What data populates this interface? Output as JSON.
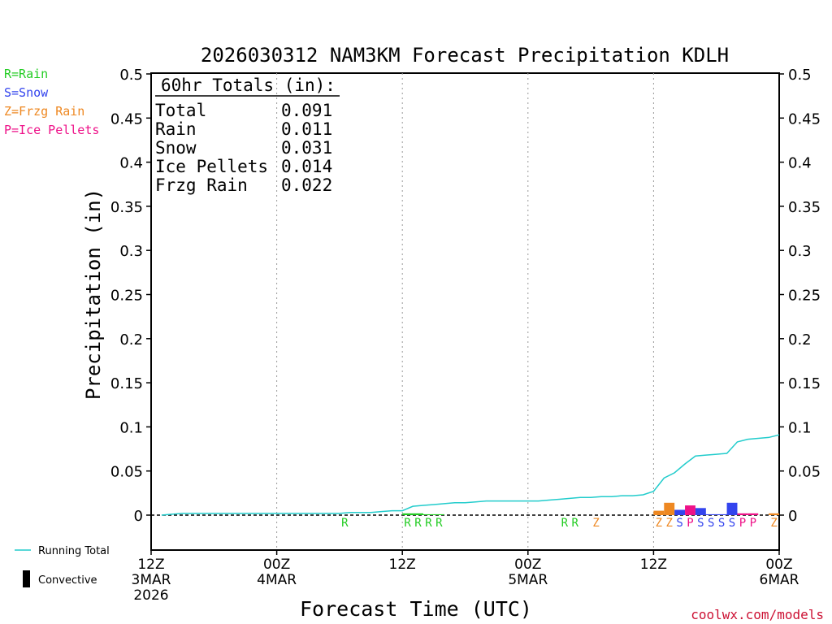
{
  "chart_data": {
    "type": "bar",
    "title": "2026030312 NAM3KM Forecast Precipitation KDLH",
    "xlabel": "Forecast Time (UTC)",
    "ylabel": "Precipitation (in)",
    "ylim": [
      -0.04,
      0.5
    ],
    "yticks": [
      "0.5",
      "0.45",
      "0.4",
      "0.35",
      "0.3",
      "0.25",
      "0.2",
      "0.15",
      "0.1",
      "0.05",
      "0"
    ],
    "ytick_values": [
      0.5,
      0.45,
      0.4,
      0.35,
      0.3,
      0.25,
      0.2,
      0.15,
      0.1,
      0.05,
      0
    ],
    "xlim_hours": [
      0,
      60
    ],
    "xticks": [
      {
        "hour": 0,
        "lines": [
          "12Z",
          "3MAR",
          "2026"
        ]
      },
      {
        "hour": 12,
        "lines": [
          "00Z",
          "4MAR"
        ]
      },
      {
        "hour": 24,
        "lines": [
          "12Z"
        ]
      },
      {
        "hour": 36,
        "lines": [
          "00Z",
          "5MAR"
        ]
      },
      {
        "hour": 48,
        "lines": [
          "12Z"
        ]
      },
      {
        "hour": 60,
        "lines": [
          "00Z",
          "6MAR"
        ]
      }
    ],
    "legend_types": [
      {
        "text": "R=Rain",
        "color": "#22cc22"
      },
      {
        "text": "S=Snow",
        "color": "#3344ee"
      },
      {
        "text": "Z=Frzg Rain",
        "color": "#ee8822"
      },
      {
        "text": "P=Ice Pellets",
        "color": "#ee1188"
      }
    ],
    "legend_lines": [
      {
        "text": "Running Total",
        "color": "#22cccc"
      },
      {
        "text": "Convective",
        "color": "#000000"
      }
    ],
    "totals": {
      "heading": "60hr Totals (in):",
      "rows": [
        {
          "label": "Total",
          "value": "0.091"
        },
        {
          "label": "Rain",
          "value": "0.011"
        },
        {
          "label": "Snow",
          "value": "0.031"
        },
        {
          "label": "Ice Pellets",
          "value": "0.014"
        },
        {
          "label": "Frzg Rain",
          "value": "0.022"
        }
      ]
    },
    "colors": {
      "R": "#22cc22",
      "S": "#3344ee",
      "Z": "#ee8822",
      "P": "#ee1188",
      "total": "#22cccc"
    },
    "bars": [
      {
        "hour": 25,
        "value": 0.002,
        "type": "R"
      },
      {
        "hour": 26,
        "value": 0.002,
        "type": "R"
      },
      {
        "hour": 27,
        "value": 0.001,
        "type": "R"
      },
      {
        "hour": 28,
        "value": 0.001,
        "type": "R"
      },
      {
        "hour": 49,
        "value": 0.005,
        "type": "Z"
      },
      {
        "hour": 50,
        "value": 0.014,
        "type": "Z"
      },
      {
        "hour": 51,
        "value": 0.006,
        "type": "S"
      },
      {
        "hour": 52,
        "value": 0.011,
        "type": "P"
      },
      {
        "hour": 53,
        "value": 0.008,
        "type": "S"
      },
      {
        "hour": 54,
        "value": 0.001,
        "type": "S"
      },
      {
        "hour": 55,
        "value": 0.001,
        "type": "S"
      },
      {
        "hour": 56,
        "value": 0.014,
        "type": "S"
      },
      {
        "hour": 57,
        "value": 0.002,
        "type": "P"
      },
      {
        "hour": 58,
        "value": 0.002,
        "type": "P"
      },
      {
        "hour": 60,
        "value": 0.002,
        "type": "Z"
      }
    ],
    "type_markers": [
      {
        "hour": 19,
        "type": "R"
      },
      {
        "hour": 25,
        "type": "R"
      },
      {
        "hour": 26,
        "type": "R"
      },
      {
        "hour": 27,
        "type": "R"
      },
      {
        "hour": 28,
        "type": "R"
      },
      {
        "hour": 40,
        "type": "R"
      },
      {
        "hour": 41,
        "type": "R"
      },
      {
        "hour": 43,
        "type": "Z"
      },
      {
        "hour": 49,
        "type": "Z"
      },
      {
        "hour": 50,
        "type": "Z"
      },
      {
        "hour": 51,
        "type": "S"
      },
      {
        "hour": 52,
        "type": "P"
      },
      {
        "hour": 53,
        "type": "S"
      },
      {
        "hour": 54,
        "type": "S"
      },
      {
        "hour": 55,
        "type": "S"
      },
      {
        "hour": 56,
        "type": "S"
      },
      {
        "hour": 57,
        "type": "P"
      },
      {
        "hour": 58,
        "type": "P"
      },
      {
        "hour": 60,
        "type": "Z"
      }
    ],
    "running_total": {
      "hours": [
        1,
        2,
        3,
        4,
        5,
        6,
        7,
        8,
        9,
        10,
        11,
        12,
        13,
        14,
        15,
        16,
        17,
        18,
        19,
        20,
        21,
        22,
        23,
        24,
        25,
        26,
        27,
        28,
        29,
        30,
        31,
        32,
        33,
        34,
        35,
        36,
        37,
        38,
        39,
        40,
        41,
        42,
        43,
        44,
        45,
        46,
        47,
        48,
        49,
        50,
        51,
        52,
        53,
        54,
        55,
        56,
        57,
        58,
        59,
        60
      ],
      "values": [
        0.0,
        0.001,
        0.002,
        0.002,
        0.002,
        0.002,
        0.002,
        0.002,
        0.002,
        0.002,
        0.002,
        0.002,
        0.002,
        0.002,
        0.002,
        0.002,
        0.002,
        0.002,
        0.003,
        0.003,
        0.003,
        0.004,
        0.005,
        0.005,
        0.01,
        0.011,
        0.012,
        0.013,
        0.014,
        0.014,
        0.015,
        0.016,
        0.016,
        0.016,
        0.016,
        0.016,
        0.016,
        0.017,
        0.018,
        0.019,
        0.02,
        0.02,
        0.021,
        0.021,
        0.022,
        0.022,
        0.023,
        0.027,
        0.042,
        0.048,
        0.058,
        0.067,
        0.068,
        0.069,
        0.07,
        0.083,
        0.086,
        0.087,
        0.088,
        0.091
      ]
    },
    "footer": "coolwx.com/models"
  }
}
